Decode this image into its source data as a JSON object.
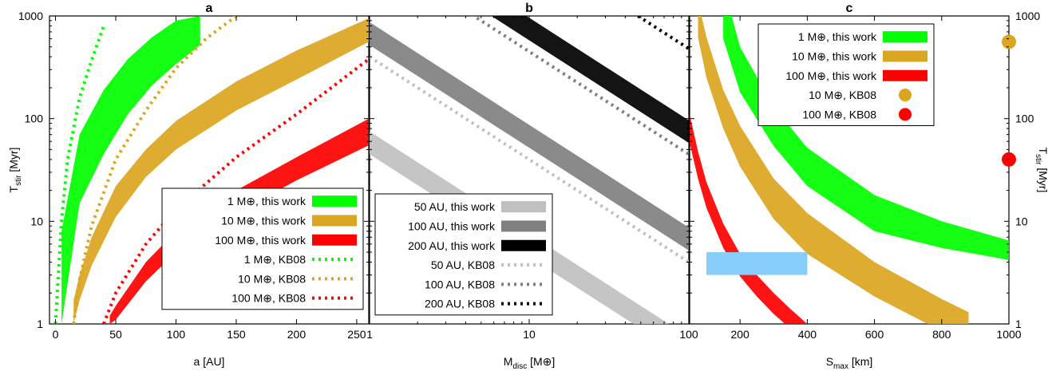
{
  "chart_data": [
    {
      "panel": "a",
      "type": "area",
      "title": "a",
      "xlabel": "a [AU]",
      "ylabel": "T_stir [Myr]",
      "xscale": "linear",
      "yscale": "log",
      "xlim": [
        -5,
        260
      ],
      "ylim": [
        1,
        1000
      ],
      "xticks": [
        "0",
        "50",
        "100",
        "150",
        "200",
        "250"
      ],
      "yticks": [
        "1",
        "10",
        "100",
        "1000"
      ],
      "legend_position": "bottom-right",
      "series": [
        {
          "name": "1 M⊕, this work",
          "style": "band",
          "color": "#00ff00",
          "x": [
            5,
            20,
            40,
            60,
            80,
            100,
            120
          ],
          "lower": [
            1,
            15,
            45,
            110,
            210,
            340,
            520
          ],
          "upper": [
            8,
            70,
            190,
            380,
            620,
            900,
            1000
          ]
        },
        {
          "name": "10 M⊕, this work",
          "style": "band",
          "color": "#daa520",
          "x": [
            15,
            20,
            30,
            50,
            75,
            100,
            150,
            200,
            260
          ],
          "lower": [
            1,
            1.7,
            3.7,
            11,
            27,
            50,
            120,
            240,
            560
          ],
          "upper": [
            1.7,
            3,
            7,
            22,
            50,
            95,
            230,
            460,
            950
          ]
        },
        {
          "name": "100 M⊕, this work",
          "style": "band",
          "color": "#ff0000",
          "x": [
            45,
            50,
            75,
            100,
            150,
            200,
            260
          ],
          "lower": [
            1,
            1.1,
            2.6,
            5,
            12,
            25,
            55
          ],
          "upper": [
            1.2,
            1.5,
            4,
            8,
            20,
            42,
            100
          ]
        },
        {
          "name": "1 M⊕, KB08",
          "style": "dotted",
          "color": "#00ff00",
          "x": [
            0,
            5,
            10,
            20,
            30,
            40
          ],
          "y": [
            1,
            10,
            40,
            160,
            370,
            800
          ]
        },
        {
          "name": "10 M⊕, KB08",
          "style": "dotted",
          "color": "#daa520",
          "x": [
            15,
            20,
            30,
            50,
            75,
            100,
            125,
            150
          ],
          "y": [
            1,
            2.7,
            9,
            40,
            120,
            310,
            600,
            1000
          ]
        },
        {
          "name": "100 M⊕, KB08",
          "style": "dotted",
          "color": "#ff0000",
          "x": [
            40,
            50,
            75,
            100,
            150,
            200,
            260
          ],
          "y": [
            1,
            2,
            6,
            13,
            42,
            110,
            380
          ]
        }
      ]
    },
    {
      "panel": "b",
      "type": "area",
      "title": "b",
      "xlabel": "M_disc [M⊕]",
      "xscale": "log",
      "yscale": "log",
      "xlim": [
        1,
        100
      ],
      "ylim": [
        1,
        1000
      ],
      "xticks": [
        "1",
        "10",
        "100"
      ],
      "legend_position": "bottom-left",
      "series": [
        {
          "name": "50 AU, this work",
          "style": "band",
          "color": "#c0c0c0",
          "x": [
            1,
            100
          ],
          "lower": [
            45,
            0.45
          ],
          "upper": [
            75,
            0.75
          ]
        },
        {
          "name": "100 AU, this work",
          "style": "band",
          "color": "#808080",
          "x": [
            1,
            100
          ],
          "lower": [
            520,
            5.2
          ],
          "upper": [
            870,
            8.7
          ]
        },
        {
          "name": "200 AU, this work",
          "style": "band",
          "color": "#000000",
          "x": [
            1,
            100
          ],
          "lower": [
            5800,
            58
          ],
          "upper": [
            9600,
            96
          ]
        },
        {
          "name": "50 AU, KB08",
          "style": "dotted",
          "color": "#c0c0c0",
          "x": [
            1,
            100
          ],
          "y": [
            400,
            4
          ]
        },
        {
          "name": "100 AU, KB08",
          "style": "dotted",
          "color": "#808080",
          "x": [
            1,
            100
          ],
          "y": [
            4500,
            45
          ]
        },
        {
          "name": "200 AU, KB08",
          "style": "dotted",
          "color": "#000000",
          "x": [
            1,
            100
          ],
          "y": [
            48000,
            480
          ]
        }
      ]
    },
    {
      "panel": "c",
      "type": "area",
      "title": "c",
      "xlabel": "S_max [km]",
      "ylabel": "T_stir [Myr]",
      "xscale": "linear",
      "yscale": "log",
      "xlim": [
        50,
        1000
      ],
      "ylim": [
        1,
        1000
      ],
      "xticks": [
        "200",
        "400",
        "600",
        "800",
        "1000"
      ],
      "yticks": [
        "1",
        "10",
        "100",
        "1000"
      ],
      "legend_position": "top-right",
      "series": [
        {
          "name": "1 M⊕, this work",
          "style": "band",
          "color": "#00ff00",
          "x": [
            150,
            200,
            300,
            400,
            600,
            800,
            1000
          ],
          "lower": [
            600,
            180,
            54,
            22,
            8,
            5.5,
            4.2
          ],
          "upper": [
            2000,
            500,
            130,
            52,
            18,
            10,
            6.5
          ]
        },
        {
          "name": "10 M⊕, this work",
          "style": "band",
          "color": "#daa520",
          "x": [
            75,
            100,
            150,
            200,
            300,
            400,
            600,
            800,
            880
          ],
          "lower": [
            620,
            250,
            80,
            34,
            10.5,
            4.8,
            1.85,
            0.85,
            0.6
          ],
          "upper": [
            1400,
            620,
            190,
            85,
            26,
            12,
            4,
            1.75,
            1.3
          ]
        },
        {
          "name": "100 M⊕, this work",
          "style": "band",
          "color": "#ff0000",
          "x": [
            50,
            75,
            100,
            150,
            200,
            250,
            300,
            350,
            400
          ],
          "lower": [
            58,
            26,
            13.5,
            5.5,
            2.9,
            1.85,
            1.25,
            0.9,
            0.65
          ],
          "upper": [
            110,
            48,
            24,
            9.5,
            4.8,
            3,
            2,
            1.4,
            1.0
          ]
        },
        {
          "name": "10 M⊕, KB08",
          "style": "point",
          "color": "#daa520",
          "x": [
            1000
          ],
          "y": [
            560
          ]
        },
        {
          "name": "100 M⊕, KB08",
          "style": "point",
          "color": "#ff0000",
          "x": [
            1000
          ],
          "y": [
            40
          ]
        },
        {
          "style": "rect",
          "color": "#87cefa",
          "x": [
            100,
            400
          ],
          "y": [
            3,
            5
          ]
        }
      ]
    }
  ]
}
